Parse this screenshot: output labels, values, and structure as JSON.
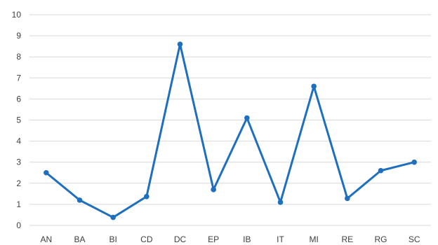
{
  "chart_data": {
    "type": "line",
    "categories": [
      "AN",
      "BA",
      "BI",
      "CD",
      "DC",
      "EP",
      "IB",
      "IT",
      "MI",
      "RE",
      "RG",
      "SC"
    ],
    "values": [
      2.5,
      1.2,
      0.38,
      1.37,
      8.6,
      1.7,
      5.1,
      1.1,
      6.6,
      1.28,
      2.6,
      3.0
    ],
    "ylim": [
      0,
      10
    ],
    "yticks": [
      "0",
      "1",
      "2",
      "3",
      "4",
      "5",
      "6",
      "7",
      "8",
      "9",
      "10"
    ],
    "grid": true,
    "legend": "none",
    "title": "",
    "xlabel": "",
    "ylabel": "",
    "colors": {
      "series": "#1f6fbf",
      "grid": "#d9d9d9",
      "text": "#404040"
    }
  }
}
